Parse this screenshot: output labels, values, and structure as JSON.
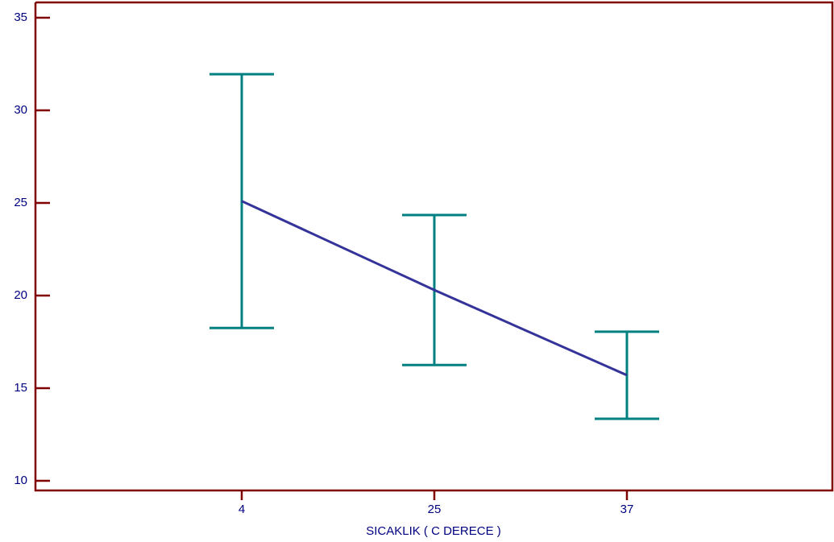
{
  "chart_data": {
    "type": "line",
    "x_label": "SICAKLIK ( C DERECE )",
    "categories": [
      "4",
      "25",
      "37"
    ],
    "series": [
      {
        "values": [
          25.1,
          20.3,
          15.7
        ],
        "errors": [
          6.85,
          4.05,
          2.35
        ],
        "color": "#333399",
        "error_color": "#008080"
      }
    ],
    "ylim": [
      10,
      35
    ],
    "yticks": [
      10,
      15,
      20,
      25,
      30,
      35
    ],
    "axis_color": "#800000",
    "label_color": "#000080"
  }
}
